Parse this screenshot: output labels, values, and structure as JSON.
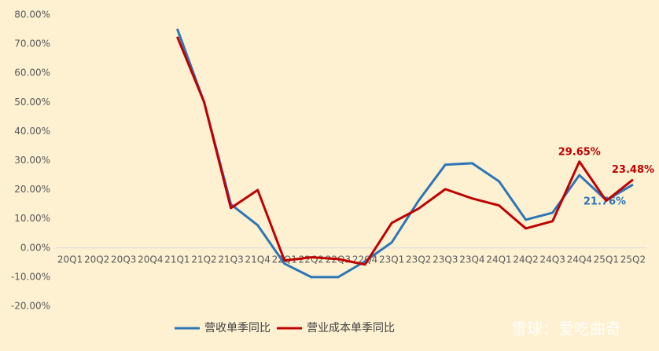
{
  "chart_data": {
    "type": "line",
    "categories": [
      "20Q1",
      "20Q2",
      "20Q3",
      "20Q4",
      "21Q1",
      "21Q2",
      "21Q3",
      "21Q4",
      "22Q1",
      "22Q2",
      "22Q3",
      "22Q4",
      "23Q1",
      "23Q2",
      "23Q3",
      "23Q4",
      "24Q1",
      "24Q2",
      "24Q3",
      "24Q4",
      "25Q1",
      "25Q2"
    ],
    "series": [
      {
        "name": "营收单季同比",
        "color": "#2e75b6",
        "values": [
          null,
          null,
          null,
          null,
          75.2,
          50.1,
          15.0,
          7.8,
          -5.4,
          -10.0,
          -10.0,
          -4.6,
          1.9,
          16.2,
          28.6,
          29.1,
          22.9,
          9.7,
          12.1,
          25.0,
          16.4,
          21.76
        ],
        "value_labels": [
          null,
          null,
          null,
          null,
          null,
          null,
          null,
          null,
          null,
          null,
          null,
          null,
          null,
          null,
          null,
          null,
          null,
          null,
          null,
          null,
          null,
          "21.76%"
        ]
      },
      {
        "name": "营业成本单季同比",
        "color": "#c00000",
        "values": [
          null,
          null,
          null,
          null,
          72.5,
          50.1,
          13.7,
          19.9,
          -4.3,
          -3.2,
          -3.8,
          -5.7,
          8.6,
          13.5,
          20.2,
          17.0,
          14.6,
          6.7,
          9.2,
          29.65,
          16.2,
          23.48
        ],
        "value_labels": [
          null,
          null,
          null,
          null,
          null,
          null,
          null,
          null,
          null,
          null,
          null,
          null,
          null,
          null,
          null,
          null,
          null,
          null,
          null,
          "29.65%",
          null,
          "23.48%"
        ]
      }
    ],
    "ylim": [
      -20,
      80
    ],
    "yticks": [
      {
        "value": -20,
        "label": "-20.00%"
      },
      {
        "value": -10,
        "label": "-10.00%"
      },
      {
        "value": 0,
        "label": "0.00%"
      },
      {
        "value": 10,
        "label": "10.00%"
      },
      {
        "value": 20,
        "label": "20.00%"
      },
      {
        "value": 30,
        "label": "30.00%"
      },
      {
        "value": 40,
        "label": "40.00%"
      },
      {
        "value": 50,
        "label": "50.00%"
      },
      {
        "value": 60,
        "label": "60.00%"
      },
      {
        "value": 70,
        "label": "70.00%"
      },
      {
        "value": 80,
        "label": "80.00%"
      }
    ],
    "legend": "bottom",
    "watermark": "雪球：爱吃曲奇"
  }
}
